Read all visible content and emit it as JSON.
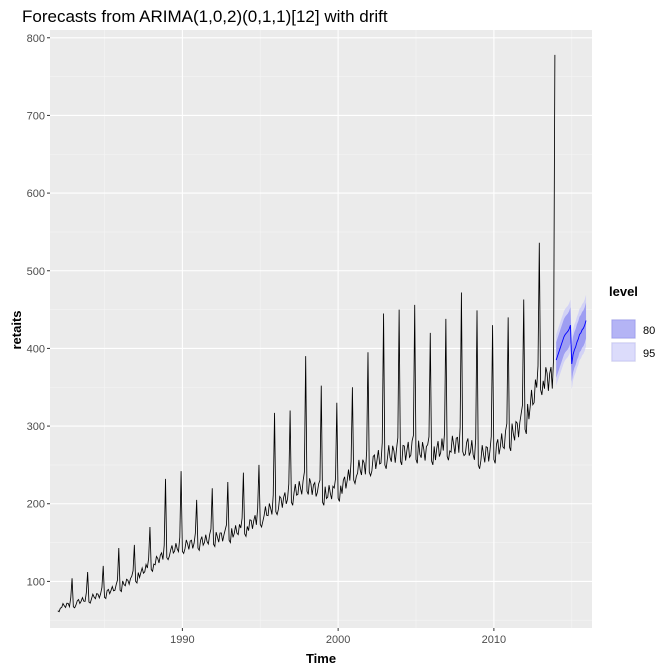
{
  "chart_data": {
    "type": "line",
    "title": "Forecasts from ARIMA(1,0,2)(0,1,1)[12] with drift",
    "xlabel": "Time",
    "ylabel": "retaits",
    "xlim": [
      1981.5,
      2016.3
    ],
    "ylim": [
      40,
      810
    ],
    "x_ticks": [
      1990,
      2000,
      2010
    ],
    "y_ticks": [
      100,
      200,
      300,
      400,
      500,
      600,
      700,
      800
    ],
    "x_tick_labels": [
      "1990",
      "2000",
      "2010"
    ],
    "y_tick_labels": [
      "100",
      "200",
      "300",
      "400",
      "500",
      "600",
      "700",
      "800"
    ],
    "grid": true,
    "legend": {
      "title": "level",
      "position": "right",
      "entries": [
        {
          "label": "80",
          "color": "#8c8cf0"
        },
        {
          "label": "95",
          "color": "#ccccf8"
        }
      ]
    },
    "series": [
      {
        "kind": "observed",
        "color": "#000000",
        "start": 1982.0,
        "frequency": 12,
        "annual_minimum": [
          [
            1982,
            61
          ],
          [
            1983,
            66
          ],
          [
            1984,
            72
          ],
          [
            1985,
            78
          ],
          [
            1986,
            87
          ],
          [
            1987,
            98
          ],
          [
            1988,
            113
          ],
          [
            1989,
            128
          ],
          [
            1990,
            136
          ],
          [
            1991,
            140
          ],
          [
            1992,
            145
          ],
          [
            1993,
            150
          ],
          [
            1994,
            158
          ],
          [
            1995,
            170
          ],
          [
            1996,
            186
          ],
          [
            1997,
            198
          ],
          [
            1998,
            212
          ],
          [
            1999,
            198
          ],
          [
            2000,
            203
          ],
          [
            2001,
            226
          ],
          [
            2002,
            236
          ],
          [
            2003,
            245
          ],
          [
            2004,
            250
          ],
          [
            2005,
            252
          ],
          [
            2006,
            250
          ],
          [
            2007,
            256
          ],
          [
            2008,
            262
          ],
          [
            2009,
            245
          ],
          [
            2010,
            252
          ],
          [
            2011,
            268
          ],
          [
            2012,
            290
          ],
          [
            2013,
            340
          ]
        ],
        "december_peak": [
          [
            1982,
            104
          ],
          [
            1983,
            112
          ],
          [
            1984,
            120
          ],
          [
            1985,
            143
          ],
          [
            1986,
            147
          ],
          [
            1987,
            170
          ],
          [
            1988,
            232
          ],
          [
            1989,
            242
          ],
          [
            1990,
            205
          ],
          [
            1991,
            220
          ],
          [
            1992,
            228
          ],
          [
            1993,
            240
          ],
          [
            1994,
            250
          ],
          [
            1995,
            317
          ],
          [
            1996,
            320
          ],
          [
            1997,
            390
          ],
          [
            1998,
            352
          ],
          [
            1999,
            330
          ],
          [
            2000,
            350
          ],
          [
            2001,
            395
          ],
          [
            2002,
            445
          ],
          [
            2003,
            450
          ],
          [
            2004,
            456
          ],
          [
            2005,
            420
          ],
          [
            2006,
            438
          ],
          [
            2007,
            472
          ],
          [
            2008,
            449
          ],
          [
            2009,
            430
          ],
          [
            2010,
            440
          ],
          [
            2011,
            463
          ],
          [
            2012,
            536
          ],
          [
            2013,
            778
          ]
        ]
      },
      {
        "kind": "forecast",
        "color": "#0000ff",
        "start": 2014.0,
        "frequency": 12,
        "mean": [
          385,
          390,
          395,
          400,
          405,
          410,
          415,
          418,
          420,
          422,
          425,
          430,
          380,
          392,
          398,
          402,
          408,
          412,
          418,
          420,
          424,
          426,
          430,
          436
        ],
        "lower_80": [
          362,
          367,
          372,
          377,
          382,
          387,
          392,
          395,
          397,
          399,
          402,
          407,
          357,
          369,
          375,
          379,
          385,
          389,
          395,
          397,
          401,
          403,
          407,
          413
        ],
        "upper_80": [
          408,
          413,
          418,
          423,
          428,
          433,
          438,
          441,
          443,
          445,
          448,
          453,
          403,
          415,
          421,
          425,
          431,
          435,
          441,
          443,
          447,
          449,
          453,
          459
        ],
        "lower_95": [
          352,
          357,
          362,
          367,
          372,
          377,
          382,
          385,
          387,
          389,
          392,
          397,
          347,
          359,
          365,
          369,
          375,
          379,
          385,
          387,
          391,
          393,
          397,
          403
        ],
        "upper_95": [
          418,
          423,
          428,
          433,
          438,
          443,
          448,
          451,
          453,
          455,
          458,
          463,
          413,
          425,
          431,
          435,
          441,
          445,
          451,
          453,
          457,
          459,
          463,
          469
        ]
      }
    ]
  }
}
